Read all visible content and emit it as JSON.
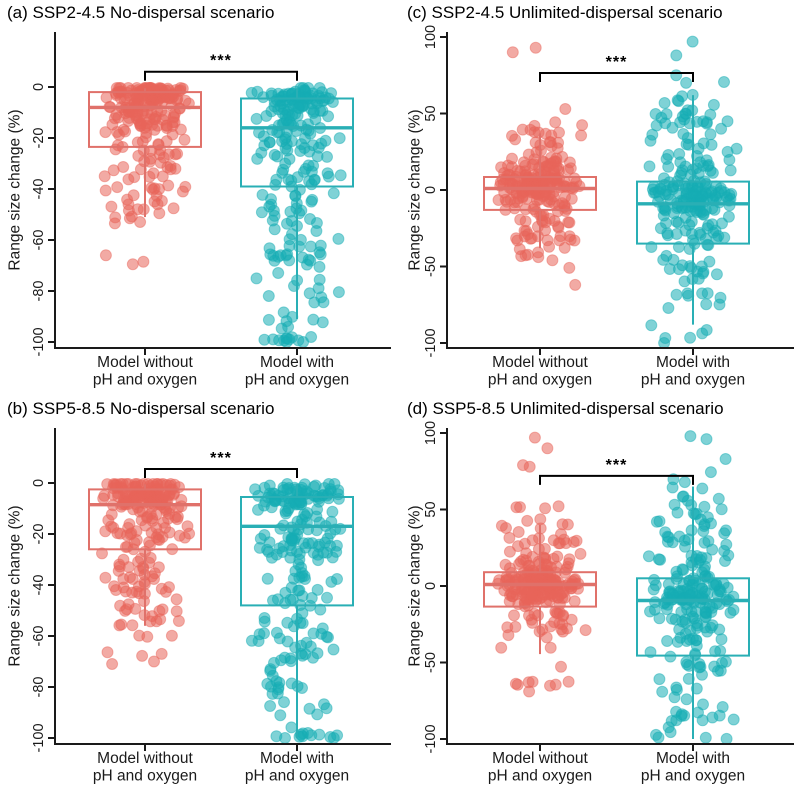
{
  "colors": {
    "axis": "#1a1a1a",
    "significance": "#000000",
    "salmon": {
      "stroke": "#E0716A",
      "fill": "#E8655A"
    },
    "teal": {
      "stroke": "#29AFB5",
      "fill": "#16ADB4"
    }
  },
  "chart_data": [
    {
      "id": "a",
      "type": "boxplot-jitter",
      "title": "(a) SSP2-4.5 No-dispersal scenario",
      "ylabel": "Range size change (%)",
      "yticks": [
        0,
        -20,
        -40,
        -60,
        -80,
        -100
      ],
      "ylim": [
        -100,
        0
      ],
      "grid": false,
      "significance": "***",
      "bracket_value": 6,
      "categories": [
        [
          "Model without",
          "pH and oxygen"
        ],
        [
          "Model with",
          "pH and oxygen"
        ]
      ],
      "groups": [
        {
          "label": "Model without pH and oxygen",
          "color_key": "salmon",
          "box": {
            "q1": -23.5,
            "median": -8,
            "q3": -2,
            "whisker_low": -51,
            "whisker_high": -0.5
          },
          "point_model": {
            "n": 235,
            "mixture": [
              {
                "w": 0.42,
                "t": "n",
                "a": -3,
                "b": 2.2
              },
              {
                "w": 0.22,
                "t": "n",
                "a": -10,
                "b": 4.5
              },
              {
                "w": 0.2,
                "t": "n",
                "a": -22,
                "b": 8
              },
              {
                "w": 0.12,
                "t": "n",
                "a": -38,
                "b": 8
              },
              {
                "w": 0.04,
                "t": "u",
                "a": -60,
                "b": -44
              }
            ],
            "outliers": [
              -66,
              -68.5,
              -69.5
            ]
          }
        },
        {
          "label": "Model with pH and oxygen",
          "color_key": "teal",
          "box": {
            "q1": -39,
            "median": -16,
            "q3": -4.5,
            "whisker_low": -91,
            "whisker_high": -0.5
          },
          "point_model": {
            "n": 235,
            "mixture": [
              {
                "w": 0.3,
                "t": "n",
                "a": -5,
                "b": 3
              },
              {
                "w": 0.2,
                "t": "n",
                "a": -15,
                "b": 6
              },
              {
                "w": 0.18,
                "t": "n",
                "a": -30,
                "b": 10
              },
              {
                "w": 0.15,
                "t": "n",
                "a": -55,
                "b": 12
              },
              {
                "w": 0.13,
                "t": "u",
                "a": -97,
                "b": -60
              },
              {
                "w": 0.04,
                "t": "u",
                "a": -100,
                "b": -98
              }
            ],
            "outliers": [
              -100,
              -100,
              -99
            ]
          }
        }
      ]
    },
    {
      "id": "c",
      "type": "boxplot-jitter",
      "title": "(c) SSP2-4.5 Unlimited-dispersal scenario",
      "ylabel": "Range size change (%)",
      "yticks": [
        100,
        50,
        0,
        -50,
        -100
      ],
      "ylim": [
        -100,
        100
      ],
      "grid": false,
      "significance": "***",
      "bracket_value": 76.5,
      "categories": [
        [
          "Model without",
          "pH and oxygen"
        ],
        [
          "Model with",
          "pH and oxygen"
        ]
      ],
      "groups": [
        {
          "label": "Model without pH and oxygen",
          "color_key": "salmon",
          "box": {
            "q1": -13,
            "median": 1,
            "q3": 8.5,
            "whisker_low": -38,
            "whisker_high": 37
          },
          "point_model": {
            "n": 235,
            "mixture": [
              {
                "w": 0.46,
                "t": "n",
                "a": 1,
                "b": 5
              },
              {
                "w": 0.22,
                "t": "n",
                "a": 12,
                "b": 10
              },
              {
                "w": 0.2,
                "t": "n",
                "a": -18,
                "b": 10
              },
              {
                "w": 0.08,
                "t": "n",
                "a": 35,
                "b": 8
              },
              {
                "w": 0.04,
                "t": "u",
                "a": -55,
                "b": -30
              }
            ],
            "outliers": [
              93,
              90,
              -62
            ]
          }
        },
        {
          "label": "Model with pH and oxygen",
          "color_key": "teal",
          "box": {
            "q1": -35,
            "median": -9,
            "q3": 5.5,
            "whisker_low": -88,
            "whisker_high": 62
          },
          "point_model": {
            "n": 235,
            "mixture": [
              {
                "w": 0.38,
                "t": "n",
                "a": -4,
                "b": 7
              },
              {
                "w": 0.2,
                "t": "n",
                "a": -25,
                "b": 12
              },
              {
                "w": 0.18,
                "t": "n",
                "a": 18,
                "b": 14
              },
              {
                "w": 0.12,
                "t": "n",
                "a": 45,
                "b": 11
              },
              {
                "w": 0.12,
                "t": "u",
                "a": -100,
                "b": -45
              }
            ],
            "outliers": [
              97,
              88,
              75,
              70
            ]
          }
        }
      ]
    },
    {
      "id": "b",
      "type": "boxplot-jitter",
      "title": "(b) SSP5-8.5 No-dispersal scenario",
      "ylabel": "Range size change (%)",
      "yticks": [
        0,
        -20,
        -40,
        -60,
        -80,
        -100
      ],
      "ylim": [
        -100,
        0
      ],
      "grid": false,
      "significance": "***",
      "bracket_value": 5.5,
      "categories": [
        [
          "Model without",
          "pH and oxygen"
        ],
        [
          "Model with",
          "pH and oxygen"
        ]
      ],
      "groups": [
        {
          "label": "Model without pH and oxygen",
          "color_key": "salmon",
          "box": {
            "q1": -26,
            "median": -8.5,
            "q3": -2.5,
            "whisker_low": -56,
            "whisker_high": -0.5
          },
          "point_model": {
            "n": 235,
            "mixture": [
              {
                "w": 0.4,
                "t": "n",
                "a": -3.5,
                "b": 2.4
              },
              {
                "w": 0.22,
                "t": "n",
                "a": -11,
                "b": 4.8
              },
              {
                "w": 0.2,
                "t": "n",
                "a": -25,
                "b": 9
              },
              {
                "w": 0.13,
                "t": "n",
                "a": -42,
                "b": 9
              },
              {
                "w": 0.05,
                "t": "u",
                "a": -62,
                "b": -48
              }
            ],
            "outliers": [
              -71,
              -70,
              -67
            ]
          }
        },
        {
          "label": "Model with pH and oxygen",
          "color_key": "teal",
          "box": {
            "q1": -48,
            "median": -17,
            "q3": -5.5,
            "whisker_low": -100,
            "whisker_high": -0.5
          },
          "point_model": {
            "n": 235,
            "mixture": [
              {
                "w": 0.28,
                "t": "n",
                "a": -5,
                "b": 3
              },
              {
                "w": 0.2,
                "t": "n",
                "a": -16,
                "b": 6
              },
              {
                "w": 0.17,
                "t": "n",
                "a": -32,
                "b": 10
              },
              {
                "w": 0.17,
                "t": "n",
                "a": -55,
                "b": 13
              },
              {
                "w": 0.14,
                "t": "u",
                "a": -97,
                "b": -58
              },
              {
                "w": 0.04,
                "t": "u",
                "a": -100,
                "b": -98
              }
            ],
            "outliers": [
              -100,
              -100,
              -99
            ]
          }
        }
      ]
    },
    {
      "id": "d",
      "type": "boxplot-jitter",
      "title": "(d) SSP5-8.5 Unlimited-dispersal scenario",
      "ylabel": "Range size change (%)",
      "yticks": [
        100,
        50,
        0,
        -50,
        -100
      ],
      "ylim": [
        -100,
        100
      ],
      "grid": false,
      "significance": "***",
      "bracket_value": 72,
      "categories": [
        [
          "Model without",
          "pH and oxygen"
        ],
        [
          "Model with",
          "pH and oxygen"
        ]
      ],
      "groups": [
        {
          "label": "Model without pH and oxygen",
          "color_key": "salmon",
          "box": {
            "q1": -13.5,
            "median": 1,
            "q3": 9,
            "whisker_low": -44.5,
            "whisker_high": 40
          },
          "point_model": {
            "n": 235,
            "mixture": [
              {
                "w": 0.45,
                "t": "n",
                "a": 1,
                "b": 5.5
              },
              {
                "w": 0.22,
                "t": "n",
                "a": 13,
                "b": 11
              },
              {
                "w": 0.2,
                "t": "n",
                "a": -20,
                "b": 11
              },
              {
                "w": 0.09,
                "t": "n",
                "a": 38,
                "b": 8
              },
              {
                "w": 0.04,
                "t": "u",
                "a": -70,
                "b": -45
              }
            ],
            "outliers": [
              97,
              90,
              79,
              78
            ]
          }
        },
        {
          "label": "Model with pH and oxygen",
          "color_key": "teal",
          "box": {
            "q1": -45.5,
            "median": -9.5,
            "q3": 5,
            "whisker_low": -100,
            "whisker_high": 65
          },
          "point_model": {
            "n": 235,
            "mixture": [
              {
                "w": 0.36,
                "t": "n",
                "a": -5,
                "b": 8
              },
              {
                "w": 0.2,
                "t": "n",
                "a": -28,
                "b": 13
              },
              {
                "w": 0.17,
                "t": "n",
                "a": 20,
                "b": 15
              },
              {
                "w": 0.12,
                "t": "n",
                "a": 48,
                "b": 12
              },
              {
                "w": 0.15,
                "t": "u",
                "a": -100,
                "b": -48
              }
            ],
            "outliers": [
              98,
              96,
              83
            ]
          }
        }
      ]
    }
  ]
}
